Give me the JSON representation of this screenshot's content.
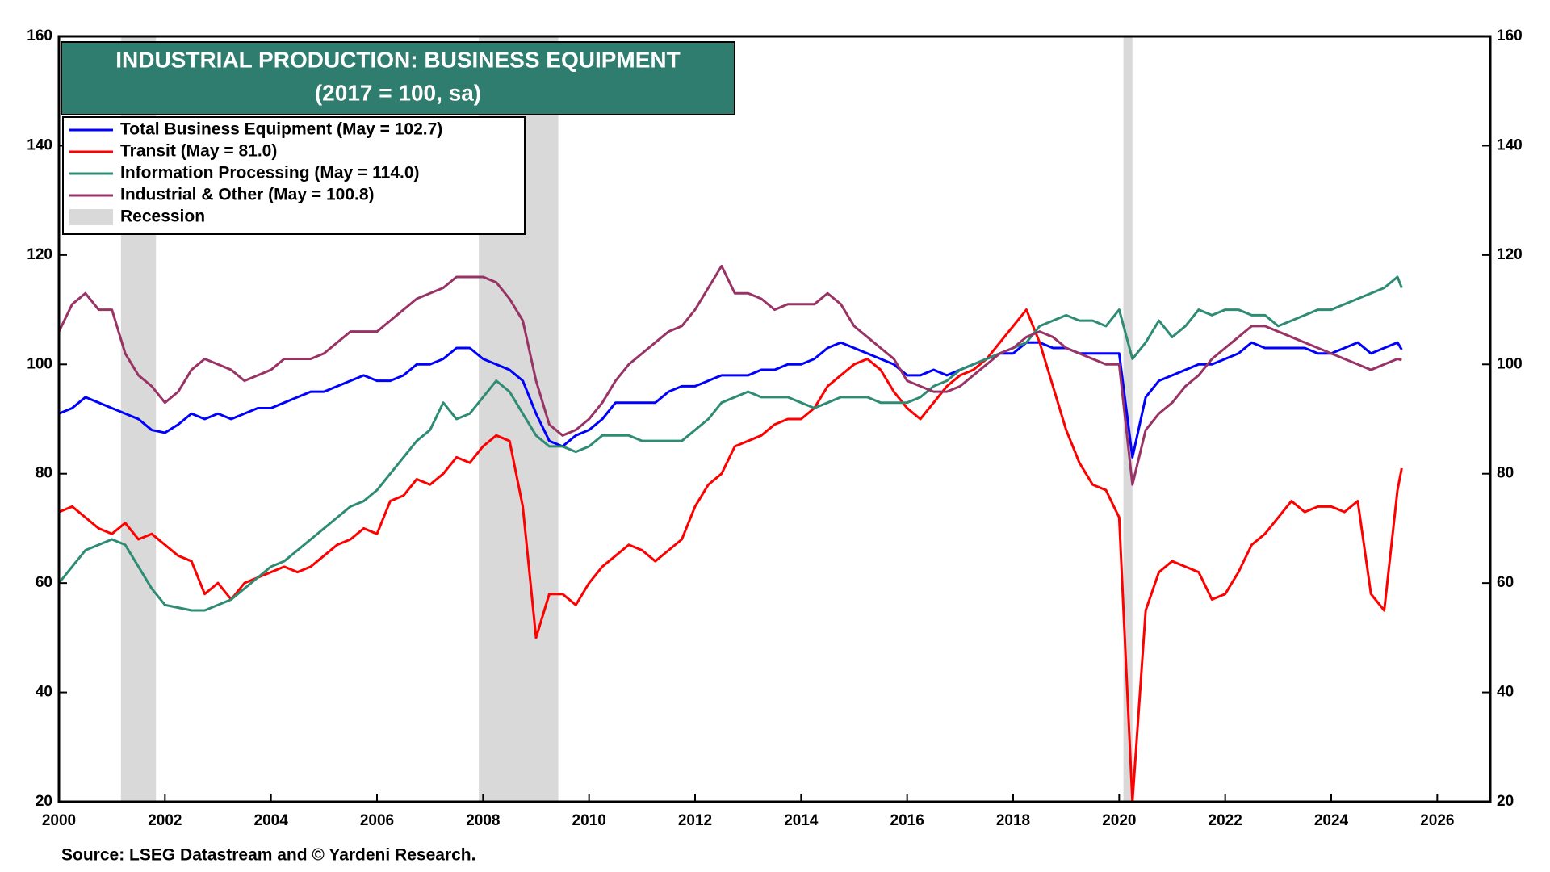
{
  "chart_data": {
    "type": "line",
    "title": "INDUSTRIAL PRODUCTION: BUSINESS EQUIPMENT",
    "subtitle": "(2017 = 100, sa)",
    "source": "Source: LSEG Datastream and © Yardeni Research.",
    "recession_label": "Recession",
    "recession_color": "#d9d9d9",
    "recessions": [
      [
        2001.17,
        2001.83
      ],
      [
        2007.92,
        2009.42
      ],
      [
        2020.08,
        2020.25
      ]
    ],
    "xlim": [
      2000,
      2027
    ],
    "xticks": [
      2000,
      2002,
      2004,
      2006,
      2008,
      2010,
      2012,
      2014,
      2016,
      2018,
      2020,
      2022,
      2024,
      2026
    ],
    "ylim": [
      20,
      160
    ],
    "yticks": [
      20,
      40,
      60,
      80,
      100,
      120,
      140,
      160
    ],
    "y2lim": [
      20,
      160
    ],
    "y2ticks": [
      20,
      40,
      60,
      80,
      100,
      120,
      140,
      160
    ],
    "grid": false,
    "x": [
      2000,
      2000.25,
      2000.5,
      2000.75,
      2001,
      2001.25,
      2001.5,
      2001.75,
      2002,
      2002.25,
      2002.5,
      2002.75,
      2003,
      2003.25,
      2003.5,
      2003.75,
      2004,
      2004.25,
      2004.5,
      2004.75,
      2005,
      2005.25,
      2005.5,
      2005.75,
      2006,
      2006.25,
      2006.5,
      2006.75,
      2007,
      2007.25,
      2007.5,
      2007.75,
      2008,
      2008.25,
      2008.5,
      2008.75,
      2009,
      2009.25,
      2009.5,
      2009.75,
      2010,
      2010.25,
      2010.5,
      2010.75,
      2011,
      2011.25,
      2011.5,
      2011.75,
      2012,
      2012.25,
      2012.5,
      2012.75,
      2013,
      2013.25,
      2013.5,
      2013.75,
      2014,
      2014.25,
      2014.5,
      2014.75,
      2015,
      2015.25,
      2015.5,
      2015.75,
      2016,
      2016.25,
      2016.5,
      2016.75,
      2017,
      2017.25,
      2017.5,
      2017.75,
      2018,
      2018.25,
      2018.5,
      2018.75,
      2019,
      2019.25,
      2019.5,
      2019.75,
      2020,
      2020.25,
      2020.5,
      2020.75,
      2021,
      2021.25,
      2021.5,
      2021.75,
      2022,
      2022.25,
      2022.5,
      2022.75,
      2023,
      2023.25,
      2023.5,
      2023.75,
      2024,
      2024.25,
      2024.5,
      2024.75,
      2025,
      2025.25,
      2025.33
    ],
    "series": [
      {
        "name": "Total Business Equipment (May = 102.7)",
        "color": "#0000ff",
        "values": [
          91,
          92,
          94,
          93,
          92,
          91,
          90,
          88,
          87.5,
          89,
          91,
          90,
          91,
          90,
          91,
          92,
          92,
          93,
          94,
          95,
          95,
          96,
          97,
          98,
          97,
          97,
          98,
          100,
          100,
          101,
          103,
          103,
          101,
          100,
          99,
          97,
          91,
          86,
          85,
          87,
          88,
          90,
          93,
          93,
          93,
          93,
          95,
          96,
          96,
          97,
          98,
          98,
          98,
          99,
          99,
          100,
          100,
          101,
          103,
          104,
          103,
          102,
          101,
          100,
          98,
          98,
          99,
          98,
          99,
          100,
          101,
          102,
          102,
          104,
          104,
          103,
          103,
          102,
          102,
          102,
          102,
          83,
          94,
          97,
          98,
          99,
          100,
          100,
          101,
          102,
          104,
          103,
          103,
          103,
          103,
          102,
          102,
          103,
          104,
          102,
          103,
          104,
          102.7
        ]
      },
      {
        "name": "Transit (May = 81.0)",
        "color": "#ff0000",
        "values": [
          73,
          74,
          72,
          70,
          69,
          71,
          68,
          69,
          67,
          65,
          64,
          58,
          60,
          57,
          60,
          61,
          62,
          63,
          62,
          63,
          65,
          67,
          68,
          70,
          69,
          75,
          76,
          79,
          78,
          80,
          83,
          82,
          85,
          87,
          86,
          74,
          50,
          58,
          58,
          56,
          60,
          63,
          65,
          67,
          66,
          64,
          66,
          68,
          74,
          78,
          80,
          85,
          86,
          87,
          89,
          90,
          90,
          92,
          96,
          98,
          100,
          101,
          99,
          95,
          92,
          90,
          93,
          96,
          98,
          99,
          101,
          104,
          107,
          110,
          104,
          96,
          88,
          82,
          78,
          77,
          72,
          20,
          55,
          62,
          64,
          63,
          62,
          57,
          58,
          62,
          67,
          69,
          72,
          75,
          73,
          74,
          74,
          73,
          75,
          58,
          55,
          77,
          81.0
        ]
      },
      {
        "name": "Information Processing (May = 114.0)",
        "color": "#2e8b74",
        "values": [
          60,
          63,
          66,
          67,
          68,
          67,
          63,
          59,
          56,
          55.5,
          55,
          55,
          56,
          57,
          59,
          61,
          63,
          64,
          66,
          68,
          70,
          72,
          74,
          75,
          77,
          80,
          83,
          86,
          88,
          93,
          90,
          91,
          94,
          97,
          95,
          91,
          87,
          85,
          85,
          84,
          85,
          87,
          87,
          87,
          86,
          86,
          86,
          86,
          88,
          90,
          93,
          94,
          95,
          94,
          94,
          94,
          93,
          92,
          93,
          94,
          94,
          94,
          93,
          93,
          93,
          94,
          96,
          97,
          99,
          100,
          101,
          102,
          103,
          104,
          107,
          108,
          109,
          108,
          108,
          107,
          110,
          101,
          104,
          108,
          105,
          107,
          110,
          109,
          110,
          110,
          109,
          109,
          107,
          108,
          109,
          110,
          110,
          111,
          112,
          113,
          114,
          116,
          114.0
        ]
      },
      {
        "name": "Industrial & Other (May = 100.8)",
        "color": "#993366",
        "values": [
          106,
          111,
          113,
          110,
          110,
          102,
          98,
          96,
          93,
          95,
          99,
          101,
          100,
          99,
          97,
          98,
          99,
          101,
          101,
          101,
          102,
          104,
          106,
          106,
          106,
          108,
          110,
          112,
          113,
          114,
          116,
          116,
          116,
          115,
          112,
          108,
          97,
          89,
          87,
          88,
          90,
          93,
          97,
          100,
          102,
          104,
          106,
          107,
          110,
          114,
          118,
          113,
          113,
          112,
          110,
          111,
          111,
          111,
          113,
          111,
          107,
          105,
          103,
          101,
          97,
          96,
          95,
          95,
          96,
          98,
          100,
          102,
          103,
          105,
          106,
          105,
          103,
          102,
          101,
          100,
          100,
          78,
          88,
          91,
          93,
          96,
          98,
          101,
          103,
          105,
          107,
          107,
          106,
          105,
          104,
          103,
          102,
          101,
          100,
          99,
          100,
          101,
          100.8
        ]
      }
    ]
  }
}
